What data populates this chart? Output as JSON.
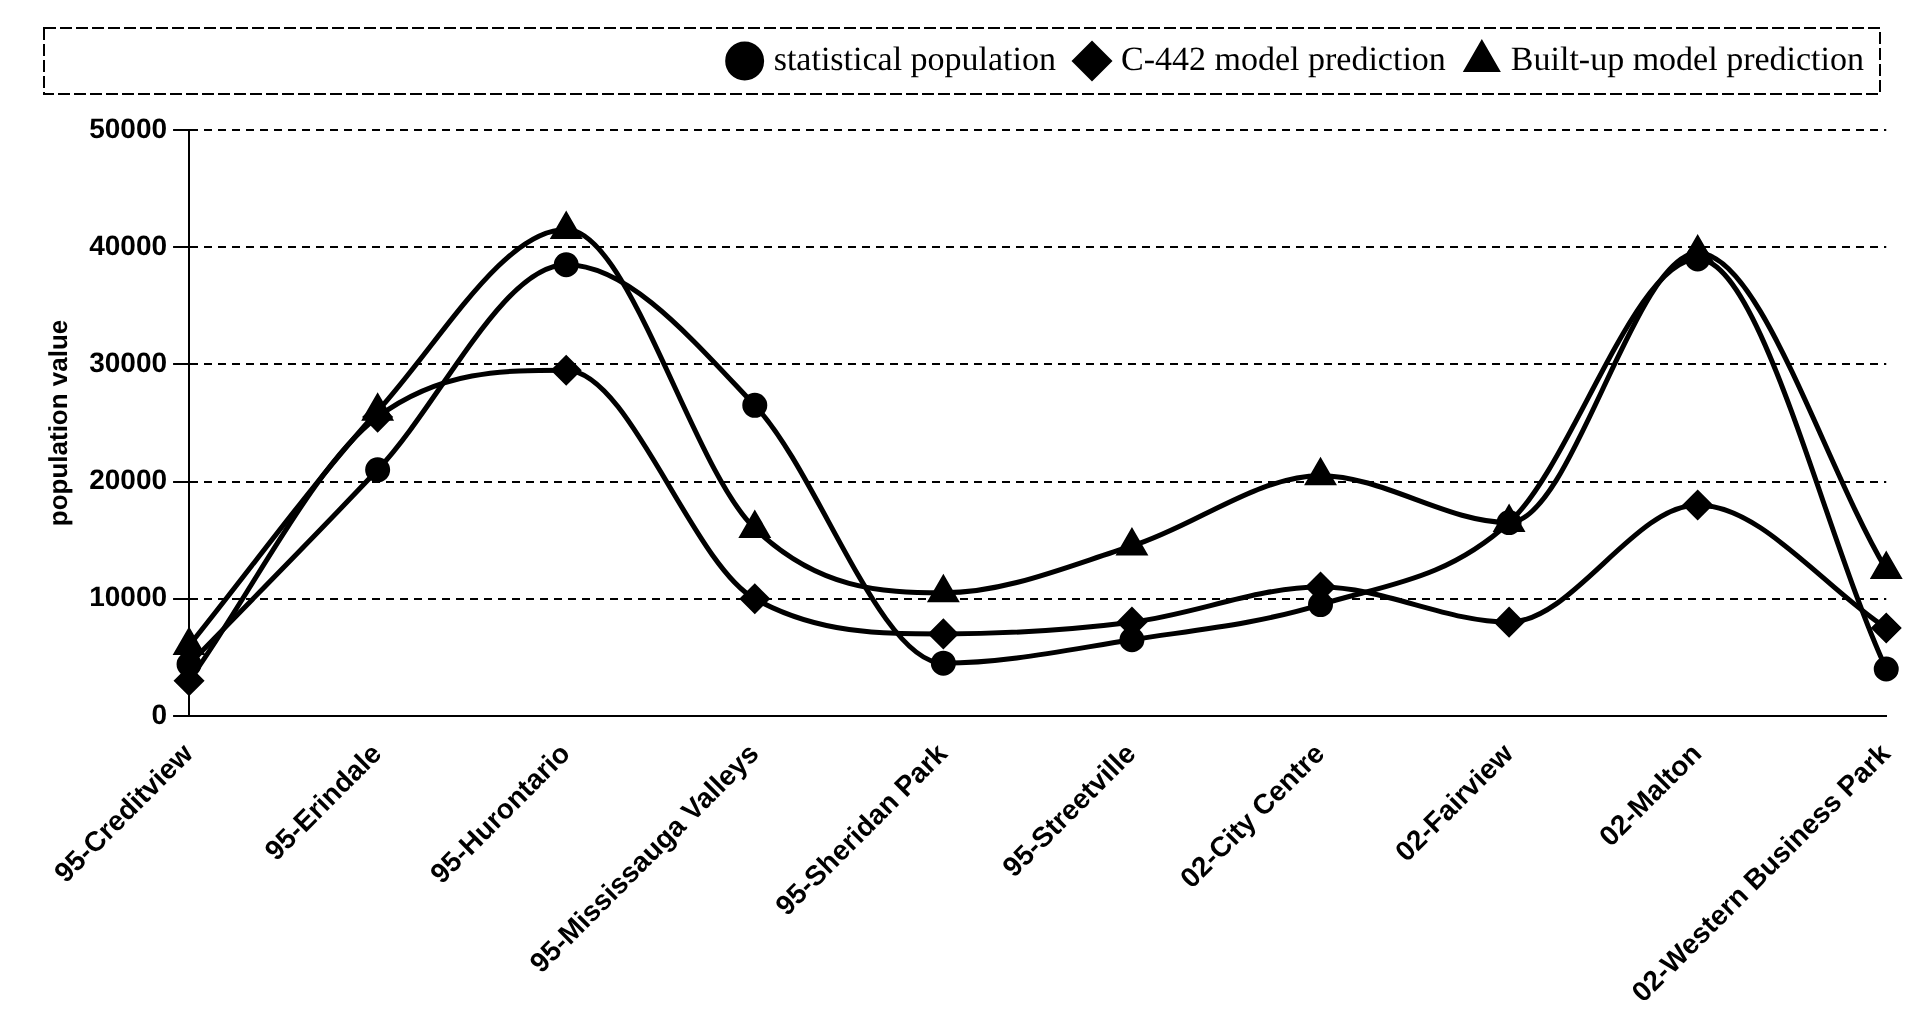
{
  "chart_data": {
    "type": "line",
    "ylabel": "population value",
    "categories": [
      "95-Creditview",
      "95-Erindale",
      "95-Hurontario",
      "95-Mississauga Valleys",
      "95-Sheridan Park",
      "95-Streetville",
      "02-City Centre",
      "02-Fairview",
      "02-Malton",
      "02-Western Business Park"
    ],
    "series": [
      {
        "name": "statistical population",
        "color": "#000000",
        "marker": "circle",
        "values": [
          4400,
          21000,
          38500,
          26500,
          4500,
          6500,
          9500,
          16500,
          39000,
          4000
        ]
      },
      {
        "name": "C-442 model prediction",
        "color": "#000000",
        "marker": "diamond",
        "values": [
          3000,
          25500,
          29500,
          10000,
          7000,
          8000,
          11000,
          8000,
          18000,
          7500
        ]
      },
      {
        "name": "Built-up model prediction",
        "color": "#000000",
        "marker": "triangle",
        "values": [
          6000,
          26000,
          41500,
          16000,
          10500,
          14500,
          20500,
          16500,
          39500,
          12500
        ]
      }
    ],
    "ylim": [
      0,
      50000
    ],
    "yticks": [
      0,
      10000,
      20000,
      30000,
      40000,
      50000
    ],
    "grid": "y",
    "legend": "top"
  }
}
